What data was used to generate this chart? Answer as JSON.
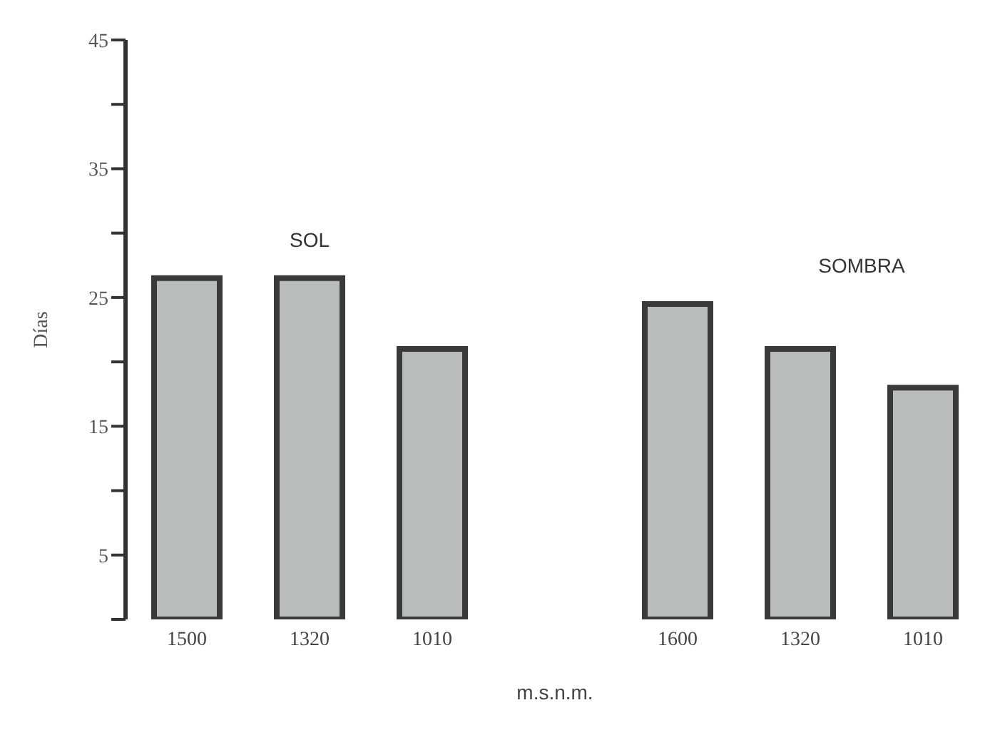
{
  "chart_data": {
    "type": "bar",
    "xlabel": "m.s.n.m.",
    "ylabel": "Días",
    "categories": [
      "1500",
      "1320",
      "1010",
      null,
      "1600",
      "1320",
      "1010"
    ],
    "values": [
      26.5,
      26.5,
      21,
      null,
      24.5,
      21,
      18
    ],
    "color": "#b9bdb9",
    "ylim": [
      0,
      45
    ],
    "yticks": [
      {
        "value": 0,
        "label": null
      },
      5,
      {
        "value": 10,
        "label": null
      },
      15,
      {
        "value": 20,
        "label": null
      },
      25,
      {
        "value": 30,
        "label": null
      },
      35,
      {
        "value": 40,
        "label": null
      },
      45
    ],
    "annotations": [
      "SOL",
      "SOMBRA"
    ],
    "grid": false,
    "legend": false
  }
}
